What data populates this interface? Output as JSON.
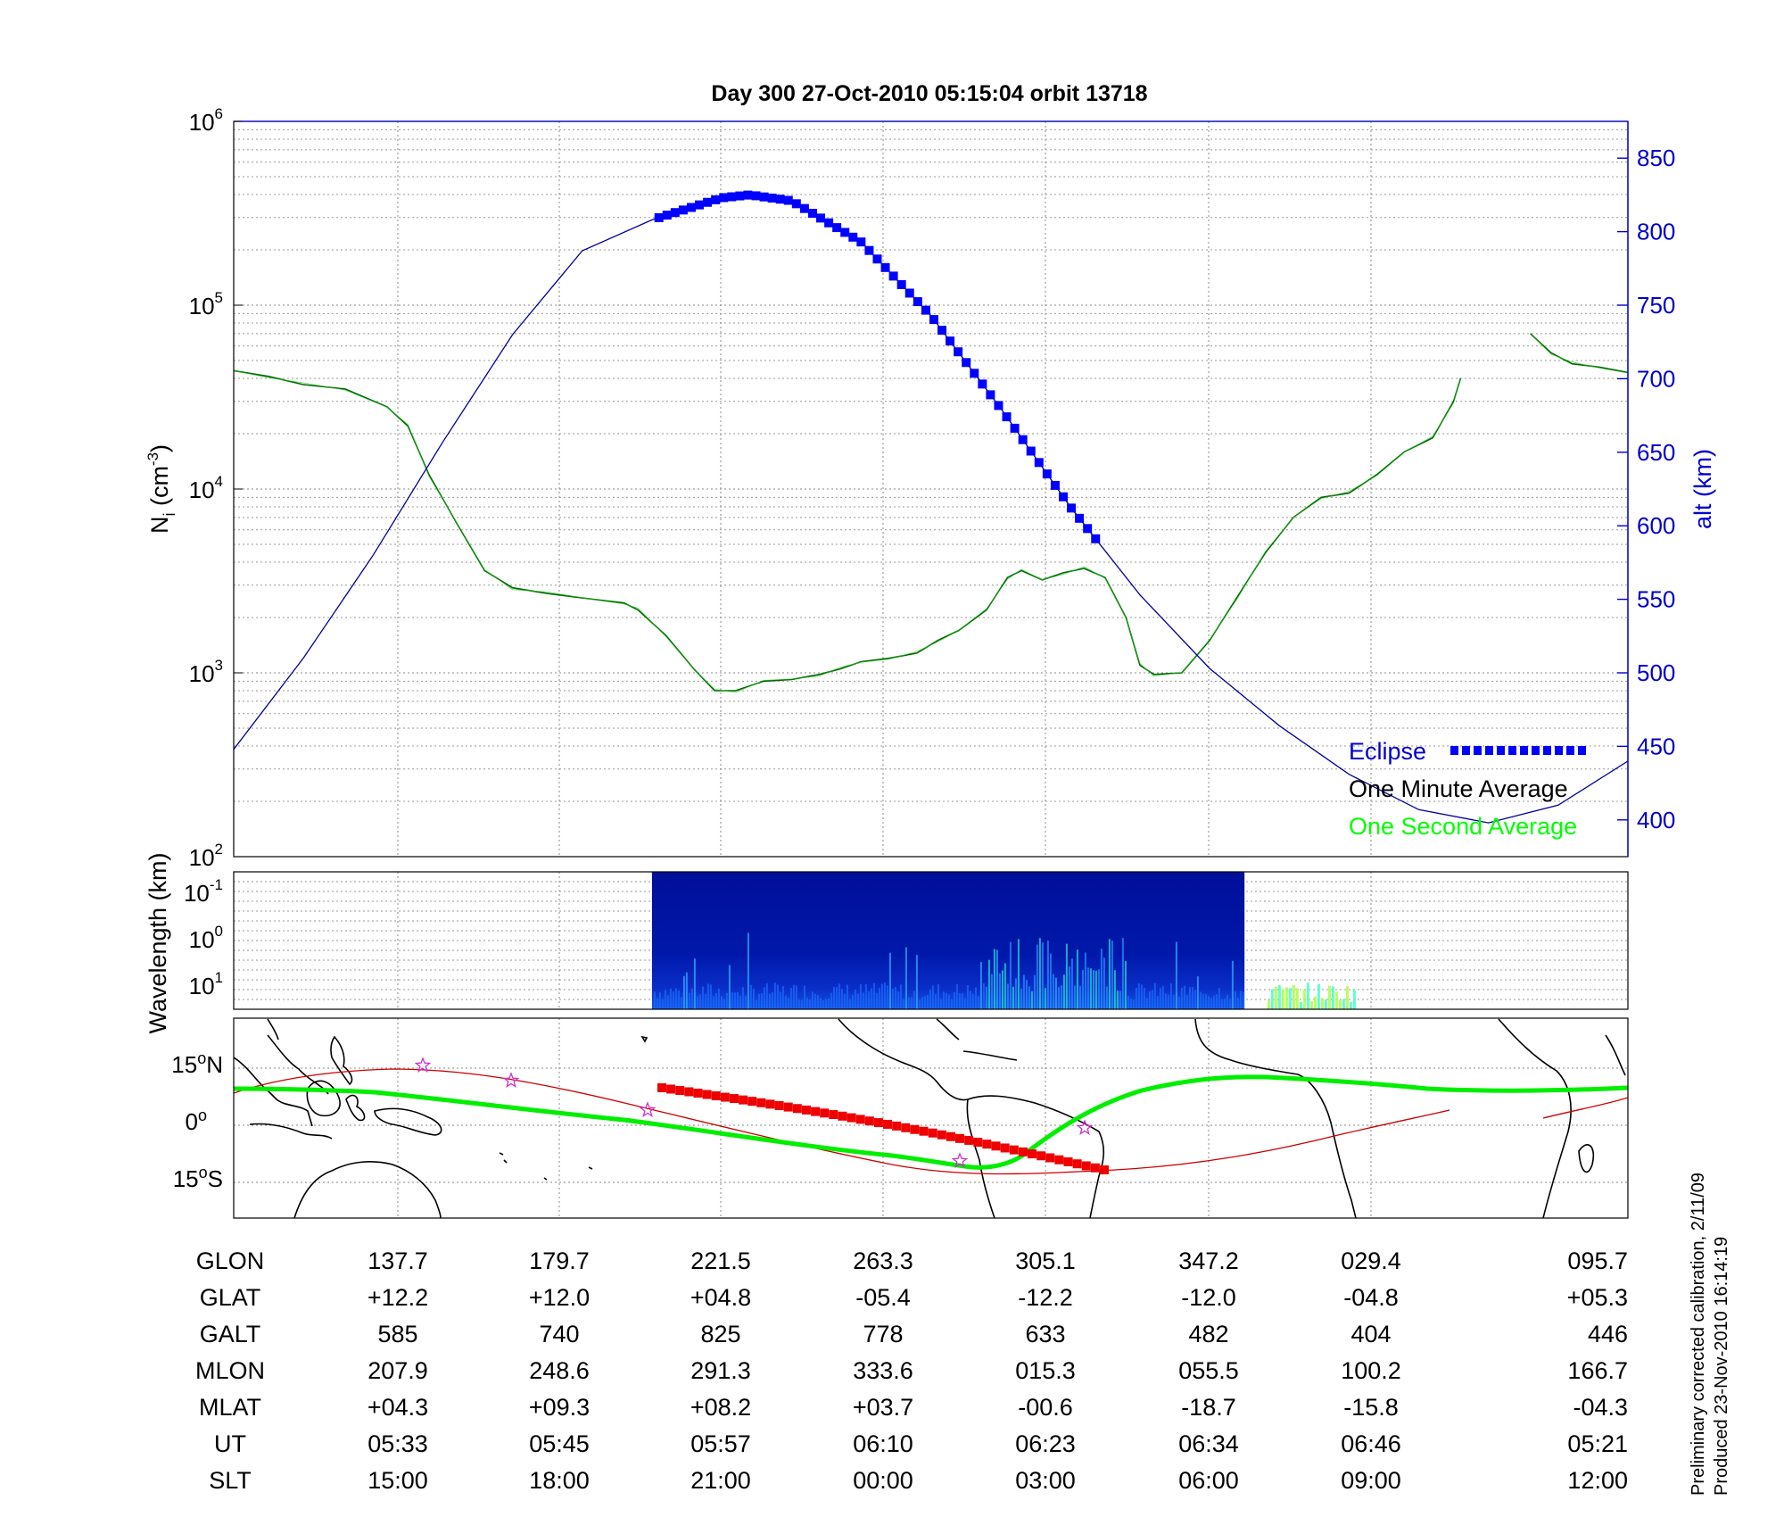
{
  "chart_data": [
    {
      "type": "line",
      "title": "Day 300  27-Oct-2010 05:15:04   orbit 13718",
      "ylabel": "N",
      "ylabel_sub": "i",
      "ylabel_unit_a": " (cm",
      "ylabel_unit_sup": "-3",
      "ylabel_unit_b": ")",
      "y_scale": "log",
      "ylim": [
        100,
        1000000
      ],
      "y_ticks": [
        {
          "base": "10",
          "exp": "2",
          "value": 100
        },
        {
          "base": "10",
          "exp": "3",
          "value": 1000
        },
        {
          "base": "10",
          "exp": "4",
          "value": 10000
        },
        {
          "base": "10",
          "exp": "5",
          "value": 100000
        },
        {
          "base": "10",
          "exp": "6",
          "value": 1000000
        }
      ],
      "y2label": "alt (km)",
      "y2lim": [
        375,
        875
      ],
      "y2_ticks": [
        "400",
        "450",
        "500",
        "550",
        "600",
        "650",
        "700",
        "750",
        "800",
        "850"
      ],
      "x_scale": "samples",
      "xlim": [
        0,
        1
      ],
      "grid": true,
      "legend": {
        "placement": "bottom-right",
        "entries": [
          {
            "label": "Eclipse",
            "color": "#0000ff"
          },
          {
            "label": "One Minute Average",
            "color": "#000000"
          },
          {
            "label": "One Second Average",
            "color": "#00ff00"
          }
        ]
      },
      "series": [
        {
          "name": "One Minute Average",
          "color": "#006600",
          "x": [
            0.0,
            0.025,
            0.05,
            0.08,
            0.11,
            0.125,
            0.14,
            0.16,
            0.18,
            0.2,
            0.225,
            0.26,
            0.28,
            0.29,
            0.31,
            0.33,
            0.345,
            0.36,
            0.38,
            0.4,
            0.42,
            0.435,
            0.45,
            0.47,
            0.49,
            0.505,
            0.52,
            0.54,
            0.555,
            0.565,
            0.58,
            0.595,
            0.61,
            0.625,
            0.64,
            0.65,
            0.66,
            0.68,
            0.7,
            0.72,
            0.74,
            0.76,
            0.78,
            0.8,
            0.82,
            0.84,
            0.86,
            0.875,
            0.88
          ],
          "y": [
            44000,
            41000,
            37000,
            35000,
            28000,
            22000,
            12000,
            6500,
            3600,
            2900,
            2700,
            2500,
            2400,
            2200,
            1600,
            1050,
            800,
            800,
            900,
            920,
            980,
            1050,
            1150,
            1200,
            1280,
            1500,
            1700,
            2200,
            3300,
            3600,
            3200,
            3500,
            3700,
            3300,
            2000,
            1100,
            980,
            1000,
            1500,
            2600,
            4500,
            7000,
            9000,
            9500,
            12000,
            16000,
            19000,
            30000,
            40000
          ]
        },
        {
          "name": "One Minute Average (end segment)",
          "color": "#006600",
          "x": [
            0.93,
            0.945,
            0.96,
            0.98,
            1.0
          ],
          "y": [
            70000,
            55000,
            48000,
            46000,
            43000
          ]
        },
        {
          "name": "alt (km)",
          "axis": "y2",
          "color": "#000099",
          "x": [
            0.0,
            0.05,
            0.1,
            0.15,
            0.2,
            0.25,
            0.3,
            0.35,
            0.37,
            0.4,
            0.45,
            0.5,
            0.55,
            0.6,
            0.65,
            0.7,
            0.75,
            0.8,
            0.85,
            0.9,
            0.95,
            1.0
          ],
          "y": [
            448,
            510,
            580,
            657,
            730,
            787,
            808,
            823,
            825,
            821,
            793,
            743,
            680,
            613,
            553,
            503,
            464,
            431,
            407,
            398,
            410,
            440
          ]
        }
      ],
      "eclipse_x": [
        0.305,
        0.62
      ]
    },
    {
      "type": "heatmap",
      "ylabel": "Wavelength (km)",
      "y_ticks": [
        {
          "base": "10",
          "exp": "-1"
        },
        {
          "base": "10",
          "exp": "0"
        },
        {
          "base": "10",
          "exp": "1"
        }
      ],
      "data_x_range": [
        0.3,
        0.725
      ]
    },
    {
      "type": "map",
      "y_ticks": [
        {
          "deg": "15",
          "sym": "o",
          "hem": "N"
        },
        {
          "deg": "0",
          "sym": "o",
          "hem": ""
        },
        {
          "deg": "15",
          "sym": "o",
          "hem": "S"
        }
      ],
      "ground_track_color": "#cc0000",
      "magnetic_equator_color": "#00ee00"
    }
  ],
  "table": {
    "rows": [
      {
        "label": "GLON",
        "values": [
          "137.7",
          "179.7",
          "221.5",
          "263.3",
          "305.1",
          "347.2",
          "029.4",
          "095.7"
        ]
      },
      {
        "label": "GLAT",
        "values": [
          "+12.2",
          "+12.0",
          "+04.8",
          "-05.4",
          "-12.2",
          "-12.0",
          "-04.8",
          "+05.3"
        ]
      },
      {
        "label": "GALT",
        "values": [
          "585",
          "740",
          "825",
          "778",
          "633",
          "482",
          "404",
          "446"
        ]
      },
      {
        "label": "MLON",
        "values": [
          "207.9",
          "248.6",
          "291.3",
          "333.6",
          "015.3",
          "055.5",
          "100.2",
          "166.7"
        ]
      },
      {
        "label": "MLAT",
        "values": [
          "+04.3",
          "+09.3",
          "+08.2",
          "+03.7",
          "-00.6",
          "-18.7",
          "-15.8",
          "-04.3"
        ]
      },
      {
        "label": "UT",
        "values": [
          "05:33",
          "05:45",
          "05:57",
          "06:10",
          "06:23",
          "06:34",
          "06:46",
          "05:21"
        ]
      },
      {
        "label": "SLT",
        "values": [
          "15:00",
          "18:00",
          "21:00",
          "00:00",
          "03:00",
          "06:00",
          "09:00",
          "12:00"
        ]
      }
    ]
  },
  "footer": {
    "line1": "Preliminary corrected calibration, 2/11/09",
    "line2": "Produced 23-Nov-2010 16:14:19"
  }
}
